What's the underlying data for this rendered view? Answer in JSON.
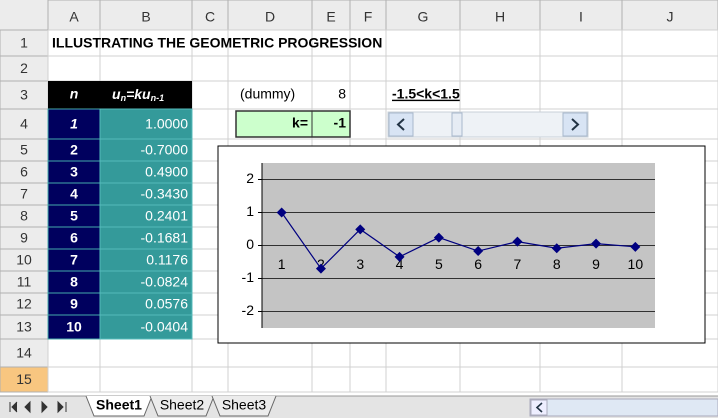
{
  "columns": [
    "A",
    "B",
    "C",
    "D",
    "E",
    "F",
    "G",
    "H",
    "I",
    "J"
  ],
  "rows": [
    1,
    2,
    3,
    4,
    5,
    6,
    7,
    8,
    9,
    10,
    11,
    12,
    13,
    14,
    15
  ],
  "title": "ILLUSTRATING THE GEOMETRIC PROGRESSION",
  "table": {
    "header": {
      "n": "n",
      "u": "u",
      "sub1": "n",
      "eq": "=ku",
      "sub2": "n-1"
    },
    "rows": [
      [
        1,
        "1.0000"
      ],
      [
        2,
        "-0.7000"
      ],
      [
        3,
        "0.4900"
      ],
      [
        4,
        "-0.3430"
      ],
      [
        5,
        "0.2401"
      ],
      [
        6,
        "-0.1681"
      ],
      [
        7,
        "0.1176"
      ],
      [
        8,
        "-0.0824"
      ],
      [
        9,
        "0.0576"
      ],
      [
        10,
        "-0.0404"
      ]
    ]
  },
  "dummy": {
    "label": "(dummy)",
    "value": 8
  },
  "k": {
    "label": "k=",
    "value": -1
  },
  "range_label": "-1.5<k<1.5",
  "chart_data": {
    "type": "line",
    "categories": [
      1,
      2,
      3,
      4,
      5,
      6,
      7,
      8,
      9,
      10
    ],
    "series": [
      {
        "color": "#000080",
        "values": [
          1,
          -0.7,
          0.49,
          -0.343,
          0.2401,
          -0.1681,
          0.1176,
          -0.0824,
          0.0576,
          -0.0404
        ]
      }
    ],
    "ylim": [
      -2.5,
      2.5
    ],
    "yticks": [
      -2,
      -1,
      0,
      1,
      2
    ],
    "grid": true
  },
  "sheet_tabs": [
    "Sheet1",
    "Sheet2",
    "Sheet3"
  ]
}
